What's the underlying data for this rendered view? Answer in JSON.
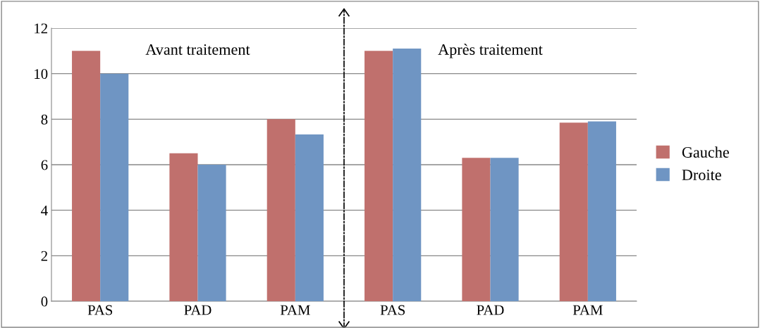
{
  "chart_data": {
    "type": "bar",
    "categories": [
      "PAS",
      "PAD",
      "PAM",
      "PAS",
      "PAD",
      "PAM"
    ],
    "series": [
      {
        "name": "Gauche",
        "color": "#c0706d",
        "values": [
          11,
          6.5,
          8,
          11,
          6.3,
          7.85
        ]
      },
      {
        "name": "Droite",
        "color": "#6f95c3",
        "values": [
          10,
          6,
          7.33,
          11.1,
          6.3,
          7.9
        ]
      }
    ],
    "ylim": [
      0,
      12
    ],
    "yticks": [
      0,
      2,
      4,
      6,
      8,
      10,
      12
    ],
    "grid": "y",
    "legend": "right",
    "annotations": [
      "Avant traitement",
      "Après traitement"
    ]
  }
}
